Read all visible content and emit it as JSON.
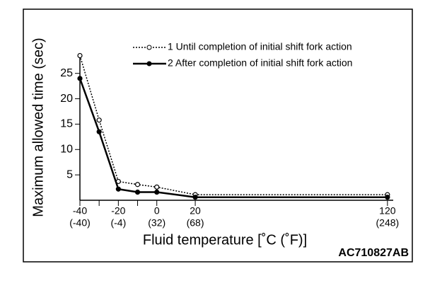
{
  "chart_data": {
    "type": "line",
    "y_label": "Maximum allowed time (sec)",
    "x_label": "Fluid temperature [˚C (˚F)]",
    "code": "AC710827AB",
    "x": [
      -40,
      -30,
      -20,
      -10,
      0,
      20,
      120
    ],
    "series": [
      {
        "name": "1 Until completion of initial shift fork action",
        "color": "#000000",
        "style": "dotted",
        "marker": "open-circle",
        "values": [
          28.5,
          15.8,
          3.7,
          3.1,
          2.6,
          1.1,
          1.1
        ]
      },
      {
        "name": "2 After completion of initial shift fork action",
        "color": "#000000",
        "style": "solid",
        "marker": "filled-circle",
        "values": [
          24,
          13.5,
          2.2,
          1.6,
          1.6,
          0.6,
          0.6
        ]
      }
    ],
    "xlim": [
      -40,
      123
    ],
    "ylim": [
      0,
      29
    ],
    "xticks": [
      -40,
      -20,
      0,
      20,
      120
    ],
    "xtick_secondary_labels": [
      "(-40)",
      "(-4)",
      "(32)",
      "(68)",
      "(248)"
    ],
    "minor_xticks": [
      -30,
      -10
    ],
    "yticks": [
      5,
      10,
      15,
      20,
      25
    ],
    "grid": false
  }
}
